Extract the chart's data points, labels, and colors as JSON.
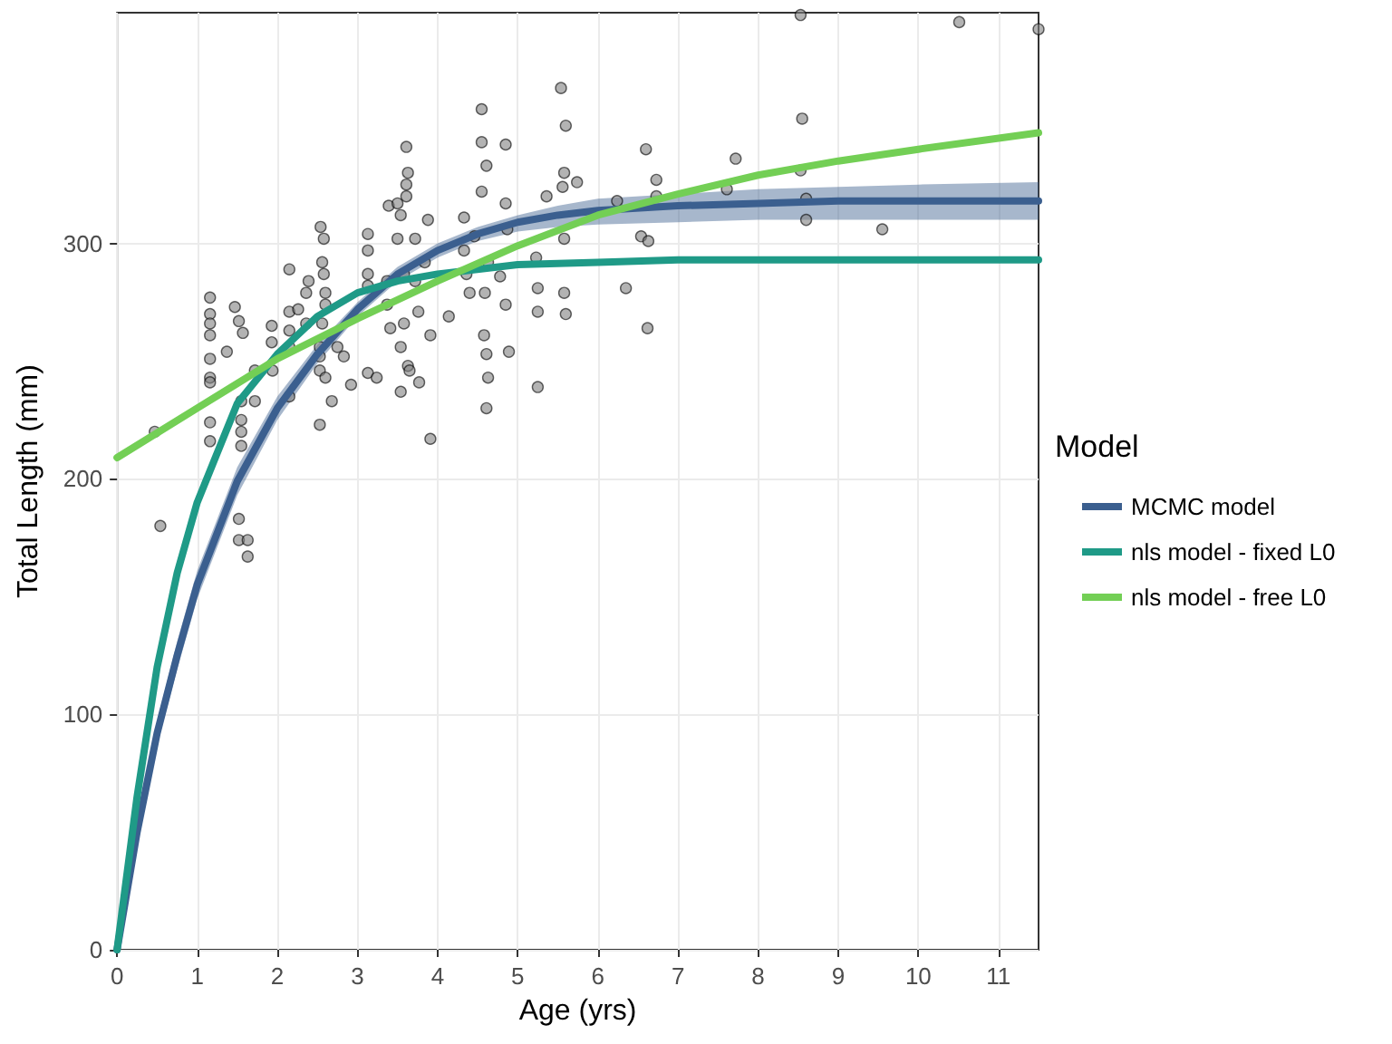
{
  "chart_data": {
    "type": "scatter",
    "xlabel": "Age (yrs)",
    "ylabel": "Total Length (mm)",
    "legend_title": "Model",
    "legend": "right",
    "grid": true,
    "xlim": [
      0,
      11.5
    ],
    "ylim": [
      0,
      398
    ],
    "xticks": [
      0,
      1,
      2,
      3,
      4,
      5,
      6,
      7,
      8,
      9,
      10,
      11
    ],
    "yticks": [
      0,
      100,
      200,
      300
    ],
    "series": [
      {
        "marker": "circle",
        "color": "#808080",
        "x": [
          0.47,
          0.54,
          1.16,
          1.16,
          1.16,
          1.16,
          1.16,
          1.16,
          1.16,
          1.16,
          1.16,
          1.37,
          1.47,
          1.52,
          1.57,
          1.52,
          1.52,
          1.63,
          1.63,
          1.55,
          1.55,
          1.55,
          1.55,
          1.72,
          1.72,
          1.93,
          1.93,
          1.94,
          2.15,
          2.15,
          2.15,
          2.15,
          2.15,
          2.26,
          2.36,
          2.36,
          2.39,
          2.53,
          2.53,
          2.53,
          2.53,
          2.54,
          2.58,
          2.56,
          2.58,
          2.6,
          2.6,
          2.56,
          2.6,
          2.68,
          2.75,
          2.83,
          2.92,
          3.13,
          3.13,
          3.13,
          3.13,
          3.13,
          3.24,
          3.39,
          3.5,
          3.54,
          3.61,
          3.63,
          3.61,
          3.61,
          3.5,
          3.58,
          3.58,
          3.54,
          3.63,
          3.54,
          3.65,
          3.37,
          3.37,
          3.41,
          3.72,
          3.72,
          3.76,
          3.88,
          3.84,
          3.91,
          3.77,
          3.91,
          4.14,
          4.33,
          4.33,
          4.36,
          4.4,
          4.46,
          4.55,
          4.55,
          4.55,
          4.61,
          4.63,
          4.59,
          4.58,
          4.61,
          4.63,
          4.61,
          4.85,
          4.85,
          4.87,
          4.78,
          4.85,
          4.89,
          5.23,
          5.25,
          5.25,
          5.25,
          5.36,
          5.54,
          5.6,
          5.58,
          5.56,
          5.58,
          5.58,
          5.6,
          5.74,
          6.24,
          6.35,
          6.54,
          6.6,
          6.62,
          6.63,
          6.73,
          6.73,
          7.61,
          7.72,
          8.53,
          8.53,
          8.55,
          8.6,
          8.6,
          9.55,
          10.51,
          11.5
        ],
        "values": [
          220,
          180,
          277,
          270,
          266,
          261,
          251,
          243,
          241,
          224,
          216,
          254,
          273,
          267,
          262,
          183,
          174,
          174,
          167,
          233,
          225,
          220,
          214,
          246,
          233,
          265,
          258,
          246,
          289,
          271,
          263,
          256,
          235,
          272,
          279,
          266,
          284,
          223,
          246,
          252,
          256,
          307,
          302,
          292,
          287,
          279,
          274,
          266,
          243,
          233,
          256,
          252,
          240,
          304,
          297,
          287,
          282,
          245,
          243,
          316,
          317,
          312,
          341,
          330,
          325,
          320,
          302,
          287,
          266,
          256,
          248,
          237,
          246,
          284,
          274,
          264,
          302,
          284,
          271,
          310,
          292,
          261,
          241,
          217,
          269,
          311,
          297,
          287,
          279,
          303,
          357,
          343,
          322,
          333,
          292,
          279,
          261,
          253,
          243,
          230,
          342,
          317,
          306,
          286,
          274,
          254,
          294,
          281,
          271,
          239,
          320,
          366,
          350,
          330,
          324,
          302,
          279,
          270,
          326,
          318,
          281,
          303,
          340,
          264,
          301,
          327,
          320,
          323,
          336,
          331,
          397,
          353,
          319,
          310,
          306,
          394,
          391
        ]
      },
      {
        "type": "line",
        "marker": "none",
        "name": "MCMC model",
        "color": "#3b5f8f",
        "x": [
          0,
          0.25,
          0.5,
          0.75,
          1,
          1.5,
          2,
          2.5,
          3,
          3.5,
          4,
          4.5,
          5,
          5.5,
          6,
          7,
          8,
          9,
          10,
          11.5
        ],
        "values": [
          0,
          50,
          92,
          125,
          155,
          199,
          230,
          253,
          272,
          287,
          297,
          304,
          309,
          312,
          314,
          316,
          317,
          318,
          318,
          318
        ],
        "lower": [
          0,
          46,
          87,
          119,
          149,
          193,
          225,
          249,
          269,
          284,
          294,
          301,
          305,
          307,
          308,
          309,
          310,
          310,
          310,
          310
        ],
        "upper": [
          0,
          54,
          97,
          131,
          161,
          205,
          235,
          257,
          275,
          290,
          300,
          307,
          312,
          316,
          319,
          321,
          323,
          324,
          325,
          326
        ]
      },
      {
        "type": "line",
        "marker": "none",
        "name": "nls model - fixed L0",
        "color": "#1f9a87",
        "x": [
          0,
          0.25,
          0.5,
          0.75,
          1,
          1.5,
          2,
          2.5,
          3,
          3.5,
          4,
          5,
          6,
          7,
          11.5
        ],
        "values": [
          0,
          65,
          120,
          160,
          190,
          232,
          253,
          269,
          279,
          284,
          287,
          291,
          292,
          293,
          293
        ]
      },
      {
        "type": "line",
        "marker": "none",
        "name": "nls model - free L0",
        "color": "#73cf55",
        "x": [
          0,
          1,
          2,
          3,
          4,
          5,
          6,
          7,
          8,
          9,
          10,
          11.5
        ],
        "values": [
          209,
          230,
          251,
          268,
          284,
          299,
          312,
          321,
          329,
          335,
          340,
          347
        ]
      }
    ]
  }
}
